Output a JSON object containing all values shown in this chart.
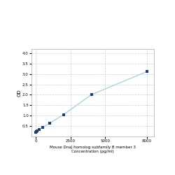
{
  "x_values": [
    0,
    62.5,
    125,
    250,
    500,
    1000,
    2000,
    4000,
    8000
  ],
  "y_values": [
    0.197,
    0.229,
    0.262,
    0.334,
    0.436,
    0.638,
    1.049,
    2.009,
    3.12
  ],
  "line_color": "#a8d4e6",
  "marker_color": "#1f3d7a",
  "marker_style": "s",
  "marker_size": 3,
  "line_width": 1.0,
  "xlabel_line1": "Mouse DnaJ homolog subfamily B member 3",
  "xlabel_line2": "Concentration (pg/ml)",
  "ylabel": "OD",
  "xlim": [
    -300,
    8500
  ],
  "ylim": [
    0.0,
    4.2
  ],
  "yticks": [
    0.5,
    1.0,
    1.5,
    2.0,
    2.5,
    3.0,
    3.5,
    4.0
  ],
  "xticks": [
    0,
    2500,
    5000,
    8000
  ],
  "xtick_labels": [
    "0",
    "2500",
    "5000",
    "8000"
  ],
  "grid_color": "#cccccc",
  "grid_linestyle": "--",
  "bg_color": "#ffffff",
  "fig_width": 2.5,
  "fig_height": 2.5,
  "dpi": 100
}
